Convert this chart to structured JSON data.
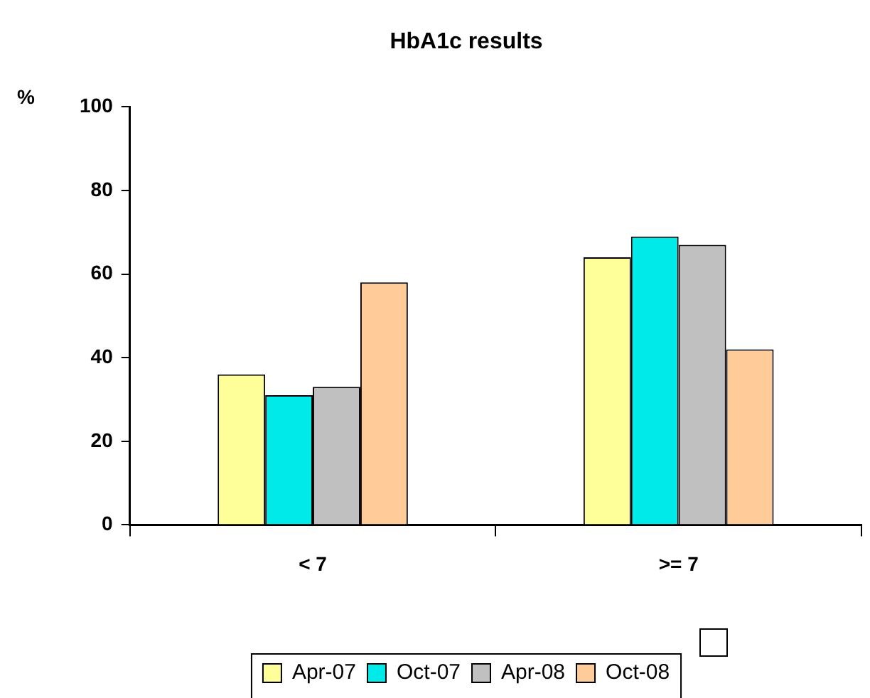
{
  "chart_data": {
    "type": "bar",
    "title": "HbA1c results",
    "ylabel": "%",
    "categories": [
      "< 7",
      ">= 7"
    ],
    "series": [
      {
        "name": "Apr-07",
        "color": "#ffff99",
        "values": [
          36,
          64
        ]
      },
      {
        "name": "Oct-07",
        "color": "#00eaea",
        "values": [
          31,
          69
        ]
      },
      {
        "name": "Apr-08",
        "color": "#c0c0c0",
        "values": [
          33,
          67
        ]
      },
      {
        "name": "Oct-08",
        "color": "#ffcc99",
        "values": [
          58,
          42
        ]
      }
    ],
    "ylim": [
      0,
      100
    ],
    "yticks": [
      0,
      20,
      40,
      60,
      80,
      100
    ],
    "grid": false,
    "legend": "bottom"
  }
}
